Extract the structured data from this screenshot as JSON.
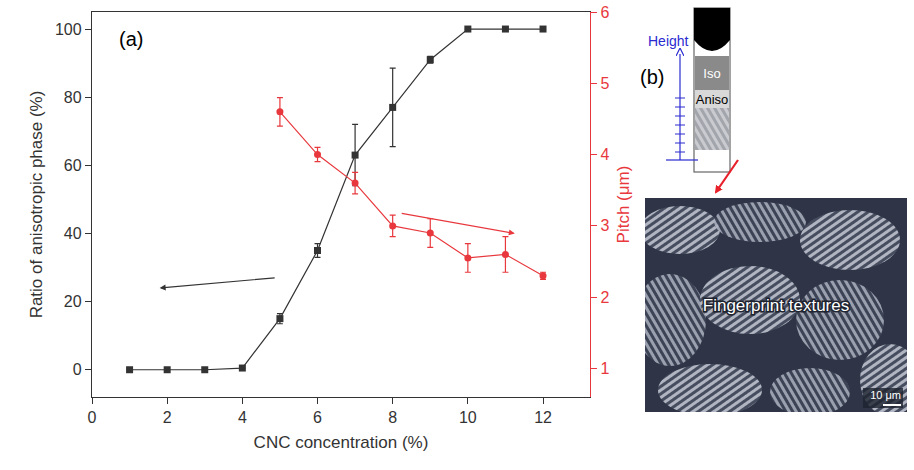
{
  "chart_data": {
    "type": "scatter",
    "panel": "(a)",
    "x_label": "CNC concentration (%)",
    "y_label": "Ratio of anisotropic phase (%)",
    "y2_label": "Pitch (μm)",
    "x": [
      1,
      2,
      3,
      4,
      5,
      6,
      7,
      8,
      9,
      10,
      11,
      12
    ],
    "xlim": [
      0,
      13.25
    ],
    "xticks": [
      0,
      2,
      4,
      6,
      8,
      10,
      12
    ],
    "ylim": [
      -8,
      105
    ],
    "yticks": [
      0,
      20,
      40,
      60,
      80,
      100
    ],
    "y2lim": [
      0.6,
      6
    ],
    "y2ticks": [
      1,
      2,
      3,
      4,
      5,
      6
    ],
    "series": [
      {
        "color": "#333333",
        "marker": "square",
        "axis": "y",
        "values": [
          0,
          0,
          0,
          0.5,
          15,
          35,
          63,
          77,
          91,
          100,
          100,
          100
        ],
        "error": [
          null,
          null,
          null,
          null,
          1.5,
          2,
          9,
          11.5,
          1,
          null,
          null,
          null
        ]
      },
      {
        "color": "#e8383d",
        "marker": "circle",
        "axis": "y2",
        "values": [
          null,
          null,
          null,
          null,
          4.6,
          4.0,
          3.6,
          3.0,
          2.9,
          2.55,
          2.6,
          2.3
        ],
        "error": [
          null,
          null,
          null,
          null,
          0.2,
          0.1,
          0.15,
          0.15,
          0.2,
          0.2,
          0.25,
          0.05
        ]
      }
    ]
  },
  "panel_b": {
    "label": "(b)",
    "ruler_label": "Height",
    "phases": [
      "Iso",
      "Aniso"
    ],
    "image_caption": "Fingerprint textures",
    "scale_bar": "10 μm"
  }
}
